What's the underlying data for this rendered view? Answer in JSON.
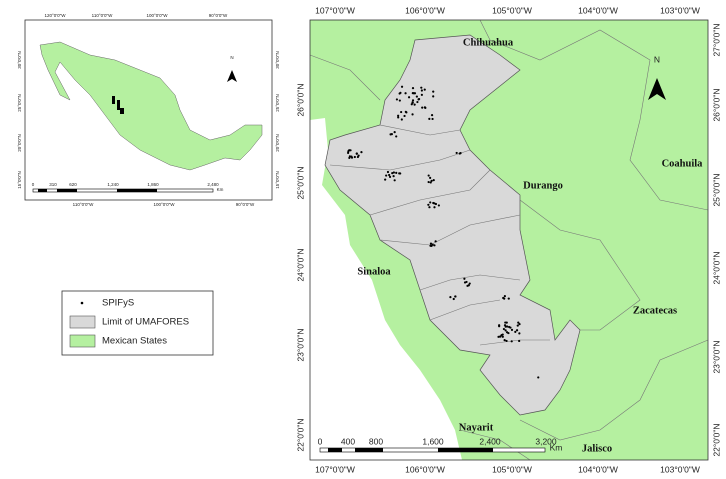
{
  "main_map": {
    "lon_labels_top": [
      "107°0'0\"W",
      "106°0'0\"W",
      "105°0'0\"W",
      "104°0'0\"W",
      "103°0'0\"W"
    ],
    "lon_labels_bottom": [
      "107°0'0\"W",
      "106°0'0\"W",
      "105°0'0\"W",
      "104°0'0\"W",
      "103°0'0\"W"
    ],
    "lat_labels_left": [
      "26°0'0\"N",
      "25°0'0\"N",
      "24°0'0\"N",
      "23°0'0\"N",
      "22°0'0\"N"
    ],
    "lat_labels_right": [
      "27°0'0\"N",
      "26°0'0\"N",
      "25°0'0\"N",
      "24°0'0\"N",
      "23°0'0\"N",
      "22°0'0\"N"
    ],
    "states": [
      "Chihuahua",
      "Durango",
      "Coahuila",
      "Sinaloa",
      "Zacatecas",
      "Nayarit",
      "Jalisco"
    ],
    "north": "N",
    "scale": {
      "ticks": [
        "0",
        "400",
        "800",
        "1,600",
        "2,400",
        "3,200"
      ],
      "unit": "Km"
    }
  },
  "inset_map": {
    "lon_labels_top": [
      "120°0'0\"W",
      "110°0'0\"W",
      "100°0'0\"W",
      "90°0'0\"W"
    ],
    "lon_labels_bottom": [
      "110°0'0\"W",
      "100°0'0\"W",
      "90°0'0\"W"
    ],
    "lat_labels_left": [
      "30°0'0\"N",
      "25°0'0\"N",
      "20°0'0\"N",
      "15°0'0\"N"
    ],
    "lat_labels_right": [
      "30°0'0\"N",
      "25°0'0\"N",
      "20°0'0\"N",
      "15°0'0\"N"
    ],
    "north": "N",
    "scale": {
      "ticks": [
        "0",
        "310",
        "620",
        "1,240",
        "1,860",
        "2,480"
      ],
      "unit": "Km"
    }
  },
  "legend": {
    "items": [
      "SPIFyS",
      "Limit of UMAFORES",
      "Mexican States"
    ]
  }
}
